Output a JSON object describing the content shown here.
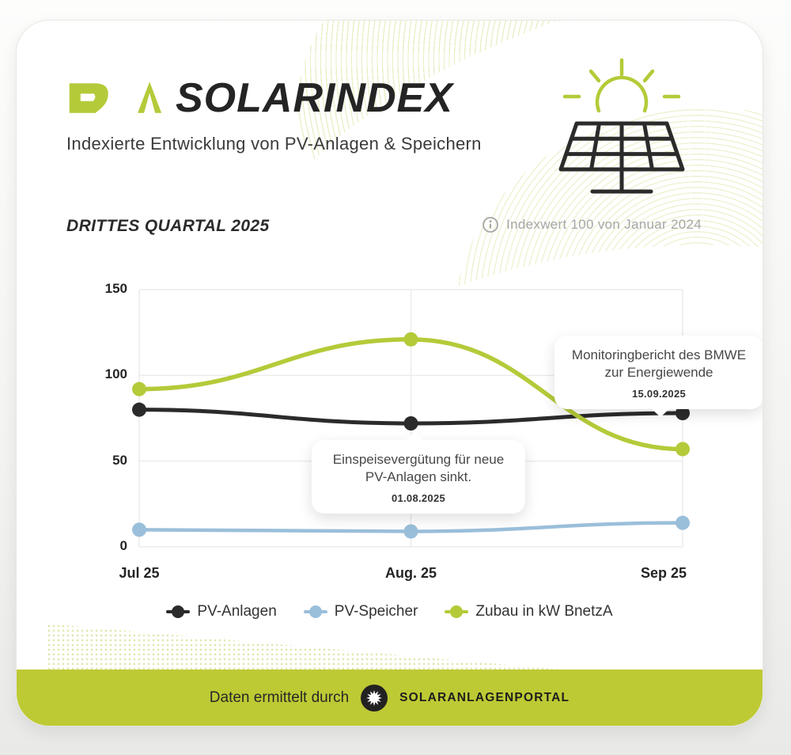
{
  "brand": {
    "logo": "DAA",
    "title": "SOLARINDEX",
    "subtitle": "Indexierte Entwicklung von PV-Anlagen & Speichern"
  },
  "section": {
    "title": "DRITTES QUARTAL 2025",
    "note": "Indexwert 100 von Januar 2024"
  },
  "chart_data": {
    "type": "line",
    "categories": [
      "Jul 25",
      "Aug. 25",
      "Sep 25"
    ],
    "series": [
      {
        "name": "PV-Anlagen",
        "color": "#2b2b2b",
        "values": [
          80,
          72,
          78
        ]
      },
      {
        "name": "PV-Speicher",
        "color": "#9abfda",
        "values": [
          10,
          9,
          14
        ]
      },
      {
        "name": "Zubau in kW BnetzA",
        "color": "#b5ca39",
        "values": [
          92,
          121,
          57
        ]
      }
    ],
    "ylim": [
      0,
      150
    ],
    "yticks": [
      0,
      50,
      100,
      150
    ],
    "grid": true,
    "legend_position": "bottom",
    "annotations": [
      {
        "series": "PV-Anlagen",
        "category": "Aug. 25",
        "line1": "Einspeisevergütung für  neue",
        "line2": "PV-Anlagen sinkt.",
        "date": "01.08.2025"
      },
      {
        "series": "PV-Anlagen",
        "category": "Sep 25",
        "line1": "Monitoringbericht des BMWE",
        "line2": "zur Energiewende",
        "date": "15.09.2025"
      }
    ]
  },
  "footer": {
    "prefix": "Daten ermittelt durch",
    "brand": "SOLARANLAGENPORTAL"
  },
  "colors": {
    "accent_green": "#b5ca39",
    "band_green": "#bdca34",
    "line_black": "#2b2b2b",
    "line_blue": "#9abfda",
    "note_gray": "#a6a6a6"
  }
}
